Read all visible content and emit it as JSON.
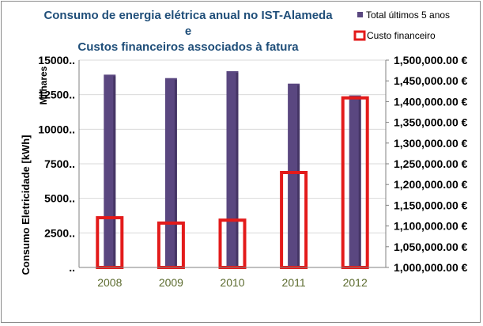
{
  "chart_data": {
    "type": "bar",
    "title_lines": [
      "Consumo de energia elétrica anual no IST-Alameda",
      "e",
      "Custos financeiros associados  à fatura"
    ],
    "categories": [
      "2008",
      "2009",
      "2010",
      "2011",
      "2012"
    ],
    "series": [
      {
        "name": "Total últimos 5 anos",
        "axis": "left",
        "values": [
          13950,
          13700,
          14200,
          13300,
          12450
        ]
      },
      {
        "name": "Custo financeiro",
        "axis": "right",
        "values": [
          1120000,
          1107000,
          1114000,
          1229000,
          1409000
        ]
      }
    ],
    "ylabel": "Consumo Eletricidade [kWh]",
    "ylabel_units": "Milhares",
    "ylim": [
      0,
      15000
    ],
    "y_ticks": [
      0,
      2500,
      5000,
      7500,
      10000,
      12500,
      15000
    ],
    "y_tick_labels": [
      "..",
      "2500..",
      "5000..",
      "7500..",
      "10000..",
      "12500..",
      "15000.."
    ],
    "y2lim": [
      1000000,
      1500000
    ],
    "y2_ticks": [
      1000000,
      1050000,
      1100000,
      1150000,
      1200000,
      1250000,
      1300000,
      1350000,
      1400000,
      1450000,
      1500000
    ],
    "y2_tick_labels": [
      "1,000,000.00 €",
      "1,050,000.00 €",
      "1,100,000.00 €",
      "1,150,000.00 €",
      "1,200,000.00 €",
      "1,250,000.00 €",
      "1,300,000.00 €",
      "1,350,000.00 €",
      "1,400,000.00 €",
      "1,450,000.00 €",
      "1,500,000.00 €"
    ],
    "grid": true,
    "legend_position": "top-right"
  },
  "colors": {
    "bar": "#5a4780",
    "outline": "#e31b1b",
    "title": "#1f4e79",
    "category_label": "#5c6b2e",
    "grid": "#d9d9d9"
  }
}
